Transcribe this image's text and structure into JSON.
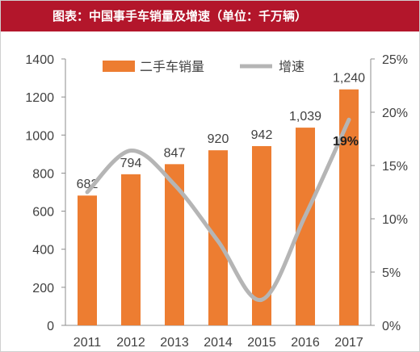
{
  "title": "图表：中国事手车销量及增速（单位：千万辆）",
  "colors": {
    "title_bar": "#b3162b",
    "bar": "#ed7d31",
    "line": "#b5b5b5",
    "axis_text": "#404040",
    "highlight_label": "#1f1f1f"
  },
  "chart_data": {
    "type": "bar",
    "title": "图表：中国事手车销量及增速（单位：千万辆）",
    "categories": [
      "2011",
      "2012",
      "2013",
      "2014",
      "2015",
      "2016",
      "2017"
    ],
    "series": [
      {
        "name": "二手车销量",
        "type": "bar",
        "axis": "left",
        "values": [
          682,
          794,
          847,
          920,
          942,
          1039,
          1240
        ],
        "data_labels": [
          "682",
          "794",
          "847",
          "920",
          "942",
          "1,039",
          "1,240"
        ]
      },
      {
        "name": "增速",
        "type": "line",
        "axis": "right",
        "smooth": true,
        "values": [
          12.5,
          16.4,
          13.2,
          7.9,
          2.4,
          10.3,
          19.3
        ],
        "data_labels": [
          "",
          "",
          "",
          "",
          "",
          "",
          "19%"
        ]
      }
    ],
    "y_left": {
      "min": 0,
      "max": 1400,
      "ticks": [
        0,
        200,
        400,
        600,
        800,
        1000,
        1200,
        1400
      ],
      "tick_labels": [
        "0",
        "200",
        "400",
        "600",
        "800",
        "1000",
        "1200",
        "1400"
      ]
    },
    "y_right": {
      "min": 0,
      "max": 25,
      "ticks": [
        0,
        5,
        10,
        15,
        20,
        25
      ],
      "tick_labels": [
        "0%",
        "5%",
        "10%",
        "15%",
        "20%",
        "25%"
      ]
    },
    "legend": {
      "position": "top-center",
      "items": [
        "二手车销量",
        "增速"
      ]
    },
    "grid": false
  }
}
